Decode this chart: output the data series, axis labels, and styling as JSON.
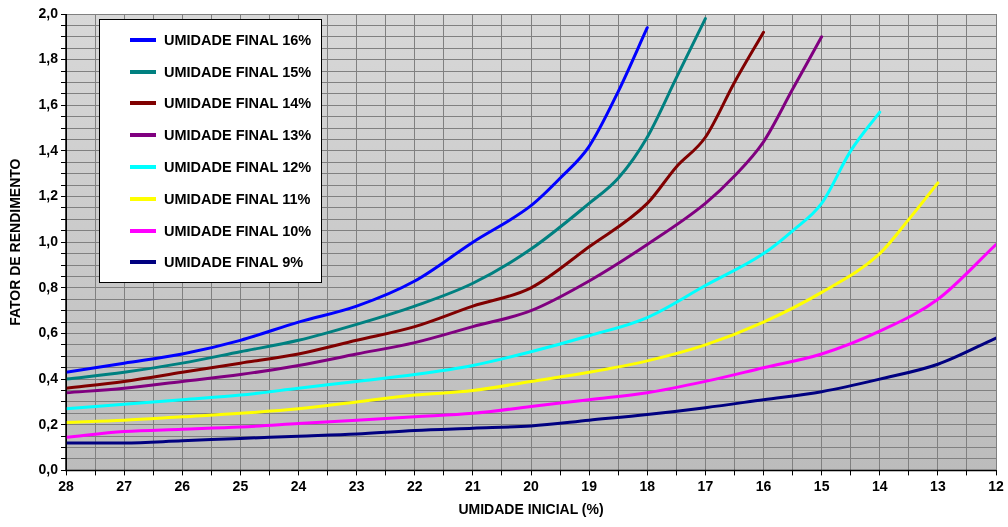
{
  "chart_data": {
    "type": "line",
    "xlabel": "UMIDADE INICIAL (%)",
    "ylabel": "FATOR DE RENDIMENTO",
    "xlim": [
      28,
      12
    ],
    "ylim": [
      0,
      2
    ],
    "xticks": [
      28,
      {
        "value": 27.5,
        "label": null
      },
      27,
      {
        "value": 26.5,
        "label": null
      },
      26,
      {
        "value": 25.5,
        "label": null
      },
      25,
      {
        "value": 24.5,
        "label": null
      },
      24,
      {
        "value": 23.5,
        "label": null
      },
      23,
      {
        "value": 22.5,
        "label": null
      },
      22,
      {
        "value": 21.5,
        "label": null
      },
      21,
      {
        "value": 20.5,
        "label": null
      },
      20,
      {
        "value": 19.5,
        "label": null
      },
      19,
      {
        "value": 18.5,
        "label": null
      },
      18,
      {
        "value": 17.5,
        "label": null
      },
      17,
      {
        "value": 16.5,
        "label": null
      },
      16,
      {
        "value": 15.5,
        "label": null
      },
      15,
      {
        "value": 14.5,
        "label": null
      },
      14,
      {
        "value": 13.5,
        "label": null
      },
      13,
      {
        "value": 12.5,
        "label": null
      },
      12
    ],
    "yticks": [
      {
        "value": 0,
        "label": "0,0"
      },
      {
        "value": 0.05,
        "label": null
      },
      {
        "value": 0.1,
        "label": null
      },
      {
        "value": 0.15,
        "label": null
      },
      {
        "value": 0.2,
        "label": "0,2"
      },
      {
        "value": 0.25,
        "label": null
      },
      {
        "value": 0.3,
        "label": null
      },
      {
        "value": 0.35,
        "label": null
      },
      {
        "value": 0.4,
        "label": "0,4"
      },
      {
        "value": 0.45,
        "label": null
      },
      {
        "value": 0.5,
        "label": null
      },
      {
        "value": 0.55,
        "label": null
      },
      {
        "value": 0.6,
        "label": "0,6"
      },
      {
        "value": 0.65,
        "label": null
      },
      {
        "value": 0.7,
        "label": null
      },
      {
        "value": 0.75,
        "label": null
      },
      {
        "value": 0.8,
        "label": "0,8"
      },
      {
        "value": 0.85,
        "label": null
      },
      {
        "value": 0.9,
        "label": null
      },
      {
        "value": 0.95,
        "label": null
      },
      {
        "value": 1,
        "label": "1,0"
      },
      {
        "value": 1.05,
        "label": null
      },
      {
        "value": 1.1,
        "label": null
      },
      {
        "value": 1.15,
        "label": null
      },
      {
        "value": 1.2,
        "label": "1,2"
      },
      {
        "value": 1.25,
        "label": null
      },
      {
        "value": 1.3,
        "label": null
      },
      {
        "value": 1.35,
        "label": null
      },
      {
        "value": 1.4,
        "label": "1,4"
      },
      {
        "value": 1.45,
        "label": null
      },
      {
        "value": 1.5,
        "label": null
      },
      {
        "value": 1.55,
        "label": null
      },
      {
        "value": 1.6,
        "label": "1,6"
      },
      {
        "value": 1.65,
        "label": null
      },
      {
        "value": 1.7,
        "label": null
      },
      {
        "value": 1.75,
        "label": null
      },
      {
        "value": 1.8,
        "label": "1,8"
      },
      {
        "value": 1.85,
        "label": null
      },
      {
        "value": 1.9,
        "label": null
      },
      {
        "value": 1.95,
        "label": null
      },
      {
        "value": 2,
        "label": "2,0"
      }
    ],
    "grid": true,
    "legend": "top left",
    "marker": "none",
    "line_style": "solid",
    "series": [
      {
        "name": "UMIDADE FINAL 16%",
        "color": "#0000ff",
        "x": [
          28,
          27,
          26,
          25,
          24,
          23,
          22,
          21,
          20,
          19.5,
          19,
          18.5,
          18
        ],
        "values": [
          0.43,
          0.47,
          0.51,
          0.57,
          0.65,
          0.72,
          0.83,
          1.0,
          1.16,
          1.28,
          1.42,
          1.66,
          1.94
        ]
      },
      {
        "name": "UMIDADE FINAL 15%",
        "color": "#008080",
        "x": [
          28,
          27,
          26,
          25,
          24,
          23,
          22,
          21,
          20,
          19,
          18.5,
          18,
          17.5,
          17
        ],
        "values": [
          0.4,
          0.43,
          0.47,
          0.52,
          0.57,
          0.64,
          0.72,
          0.82,
          0.97,
          1.17,
          1.28,
          1.46,
          1.72,
          1.98
        ]
      },
      {
        "name": "UMIDADE FINAL 14%",
        "color": "#800000",
        "x": [
          28,
          27,
          26,
          25,
          24,
          23,
          22,
          21,
          20,
          19,
          18,
          17.5,
          17,
          16.5,
          16
        ],
        "values": [
          0.36,
          0.39,
          0.43,
          0.47,
          0.51,
          0.57,
          0.63,
          0.72,
          0.8,
          0.98,
          1.17,
          1.33,
          1.46,
          1.7,
          1.92
        ]
      },
      {
        "name": "UMIDADE FINAL 13%",
        "color": "#800080",
        "x": [
          28,
          27,
          26,
          25,
          24,
          23,
          22,
          21,
          20,
          19,
          18,
          17,
          16.5,
          16,
          15.5,
          15
        ],
        "values": [
          0.34,
          0.36,
          0.39,
          0.42,
          0.46,
          0.51,
          0.56,
          0.63,
          0.7,
          0.83,
          0.99,
          1.17,
          1.29,
          1.44,
          1.67,
          1.9
        ]
      },
      {
        "name": "UMIDADE FINAL 12%",
        "color": "#00ffff",
        "x": [
          28,
          27,
          26,
          25,
          24,
          23,
          22,
          21,
          20,
          19,
          18,
          17,
          16,
          15.5,
          15,
          14.5,
          14
        ],
        "values": [
          0.27,
          0.29,
          0.31,
          0.33,
          0.36,
          0.39,
          0.42,
          0.46,
          0.52,
          0.59,
          0.67,
          0.81,
          0.95,
          1.05,
          1.17,
          1.4,
          1.57
        ]
      },
      {
        "name": "UMIDADE FINAL 11%",
        "color": "#ffff00",
        "x": [
          28,
          27,
          26,
          25,
          24,
          23,
          22,
          21,
          20,
          19,
          18,
          17,
          16,
          15,
          14,
          13.5,
          13
        ],
        "values": [
          0.21,
          0.22,
          0.235,
          0.25,
          0.27,
          0.3,
          0.33,
          0.35,
          0.39,
          0.43,
          0.48,
          0.55,
          0.65,
          0.78,
          0.95,
          1.1,
          1.26
        ]
      },
      {
        "name": "UMIDADE FINAL 10%",
        "color": "#ff00ff",
        "x": [
          28,
          27,
          26,
          25,
          24,
          23,
          22,
          21,
          20,
          19,
          18,
          17,
          16,
          15,
          14,
          13,
          12
        ],
        "values": [
          0.145,
          0.17,
          0.18,
          0.19,
          0.205,
          0.22,
          0.235,
          0.25,
          0.28,
          0.31,
          0.34,
          0.39,
          0.45,
          0.51,
          0.61,
          0.75,
          0.99
        ]
      },
      {
        "name": "UMIDADE FINAL 9%",
        "color": "#000080",
        "x": [
          28,
          27,
          26,
          25,
          24,
          23,
          22,
          21,
          20,
          19,
          18,
          17,
          16,
          15,
          14,
          13,
          12
        ],
        "values": [
          0.12,
          0.12,
          0.13,
          0.14,
          0.15,
          0.16,
          0.175,
          0.185,
          0.195,
          0.22,
          0.245,
          0.275,
          0.31,
          0.345,
          0.4,
          0.465,
          0.58
        ]
      }
    ]
  }
}
